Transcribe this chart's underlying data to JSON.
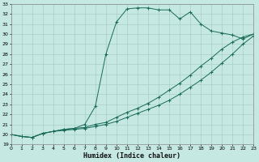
{
  "xlabel": "Humidex (Indice chaleur)",
  "background_color": "#c5e8e2",
  "grid_color": "#a8cfc8",
  "line_color": "#1a6b5a",
  "xlim": [
    0,
    23
  ],
  "ylim": [
    19,
    33
  ],
  "xticks": [
    0,
    1,
    2,
    3,
    4,
    5,
    6,
    7,
    8,
    9,
    10,
    11,
    12,
    13,
    14,
    15,
    16,
    17,
    18,
    19,
    20,
    21,
    22,
    23
  ],
  "yticks": [
    19,
    20,
    21,
    22,
    23,
    24,
    25,
    26,
    27,
    28,
    29,
    30,
    31,
    32,
    33
  ],
  "line1_x": [
    0,
    1,
    2,
    3,
    4,
    5,
    6,
    7,
    8,
    9,
    10,
    11,
    12,
    13,
    14,
    15,
    16,
    17,
    18,
    19,
    20,
    21,
    22,
    23
  ],
  "line1_y": [
    20.0,
    19.8,
    19.7,
    20.1,
    20.3,
    20.4,
    20.5,
    20.6,
    20.8,
    21.0,
    21.3,
    21.7,
    22.1,
    22.5,
    22.9,
    23.4,
    24.0,
    24.7,
    25.4,
    26.2,
    27.1,
    28.0,
    29.0,
    29.8
  ],
  "line2_x": [
    0,
    1,
    2,
    3,
    4,
    5,
    6,
    7,
    8,
    9,
    10,
    11,
    12,
    13,
    14,
    15,
    16,
    17,
    18,
    19,
    20,
    21,
    22,
    23
  ],
  "line2_y": [
    20.0,
    19.8,
    19.7,
    20.1,
    20.3,
    20.5,
    20.6,
    20.7,
    21.0,
    21.2,
    21.7,
    22.2,
    22.6,
    23.1,
    23.7,
    24.4,
    25.1,
    25.9,
    26.8,
    27.6,
    28.5,
    29.2,
    29.7,
    30.0
  ],
  "line3_x": [
    0,
    1,
    2,
    3,
    4,
    5,
    6,
    7,
    8,
    9,
    10,
    11,
    12,
    13,
    14,
    15,
    16,
    17,
    18,
    19,
    20,
    21,
    22,
    23
  ],
  "line3_y": [
    20.0,
    19.8,
    19.7,
    20.1,
    20.3,
    20.5,
    20.6,
    21.0,
    22.8,
    28.0,
    31.2,
    32.5,
    32.6,
    32.6,
    32.4,
    32.4,
    31.5,
    32.2,
    31.0,
    30.3,
    30.1,
    29.9,
    29.5,
    30.0
  ]
}
